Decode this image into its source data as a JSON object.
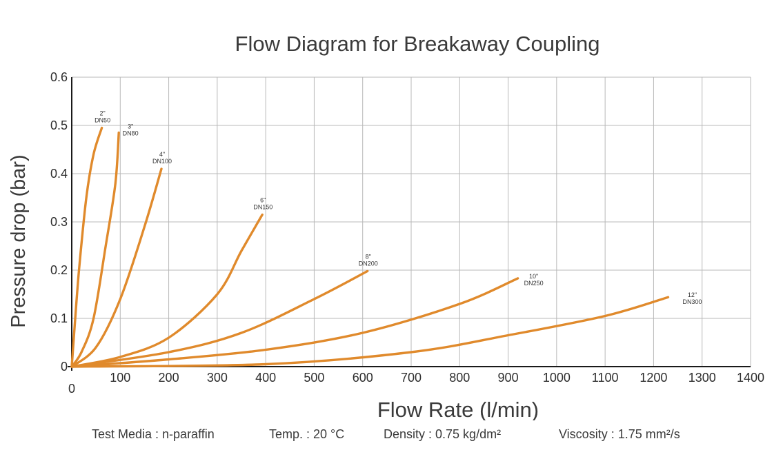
{
  "chart_data": {
    "type": "line",
    "title": "Flow Diagram for Breakaway Coupling",
    "xlabel": "Flow Rate (l/min)",
    "ylabel": "Pressure drop (bar)",
    "xlim": [
      0,
      1400
    ],
    "ylim": [
      0,
      0.6
    ],
    "x_ticks": [
      0,
      100,
      200,
      300,
      400,
      500,
      600,
      700,
      800,
      900,
      1000,
      1100,
      1200,
      1300,
      1400
    ],
    "y_ticks": [
      0,
      0.1,
      0.2,
      0.3,
      0.4,
      0.5,
      0.6
    ],
    "x_tick_labels": [
      "0",
      "100",
      "200",
      "300",
      "400",
      "500",
      "600",
      "700",
      "800",
      "900",
      "1000",
      "1100",
      "1200",
      "1300",
      "1400"
    ],
    "y_tick_labels": [
      "0",
      "0.1",
      "0.2",
      "0.3",
      "0.4",
      "0.5",
      "0.6"
    ],
    "grid": true,
    "line_color": "#e08a2c",
    "series": [
      {
        "name": "2\" DN50",
        "label_line1": "2\"",
        "label_line2": "DN50",
        "points": [
          [
            0,
            0
          ],
          [
            5,
            0.07
          ],
          [
            15,
            0.2
          ],
          [
            30,
            0.35
          ],
          [
            45,
            0.44
          ],
          [
            62,
            0.495
          ]
        ]
      },
      {
        "name": "3\" DN80",
        "label_line1": "3\"",
        "label_line2": "DN80",
        "points": [
          [
            0,
            0
          ],
          [
            20,
            0.03
          ],
          [
            45,
            0.1
          ],
          [
            70,
            0.25
          ],
          [
            90,
            0.38
          ],
          [
            97,
            0.485
          ]
        ]
      },
      {
        "name": "4\" DN100",
        "label_line1": "4\"",
        "label_line2": "DN100",
        "points": [
          [
            0,
            0
          ],
          [
            50,
            0.04
          ],
          [
            100,
            0.14
          ],
          [
            150,
            0.29
          ],
          [
            185,
            0.41
          ]
        ]
      },
      {
        "name": "6\" DN150",
        "label_line1": "6\"",
        "label_line2": "DN150",
        "points": [
          [
            0,
            0
          ],
          [
            100,
            0.02
          ],
          [
            200,
            0.06
          ],
          [
            300,
            0.15
          ],
          [
            350,
            0.24
          ],
          [
            393,
            0.315
          ]
        ]
      },
      {
        "name": "8\" DN200",
        "label_line1": "8\"",
        "label_line2": "DN200",
        "points": [
          [
            0,
            0
          ],
          [
            200,
            0.03
          ],
          [
            350,
            0.07
          ],
          [
            500,
            0.14
          ],
          [
            610,
            0.198
          ]
        ]
      },
      {
        "name": "10\" DN250",
        "label_line1": "10\"",
        "label_line2": "DN250",
        "points": [
          [
            0,
            0
          ],
          [
            200,
            0.015
          ],
          [
            400,
            0.035
          ],
          [
            600,
            0.07
          ],
          [
            800,
            0.13
          ],
          [
            920,
            0.183
          ]
        ]
      },
      {
        "name": "12\" DN300",
        "label_line1": "12\"",
        "label_line2": "DN300",
        "points": [
          [
            0,
            0
          ],
          [
            400,
            0.005
          ],
          [
            700,
            0.03
          ],
          [
            900,
            0.065
          ],
          [
            1100,
            0.105
          ],
          [
            1230,
            0.144
          ]
        ]
      }
    ]
  },
  "conditions": {
    "test_media": "Test Media : n-paraffin",
    "temp": "Temp. : 20 °C",
    "density": "Density : 0.75 kg/dm²",
    "viscosity": "Viscosity : 1.75 mm²/s"
  }
}
